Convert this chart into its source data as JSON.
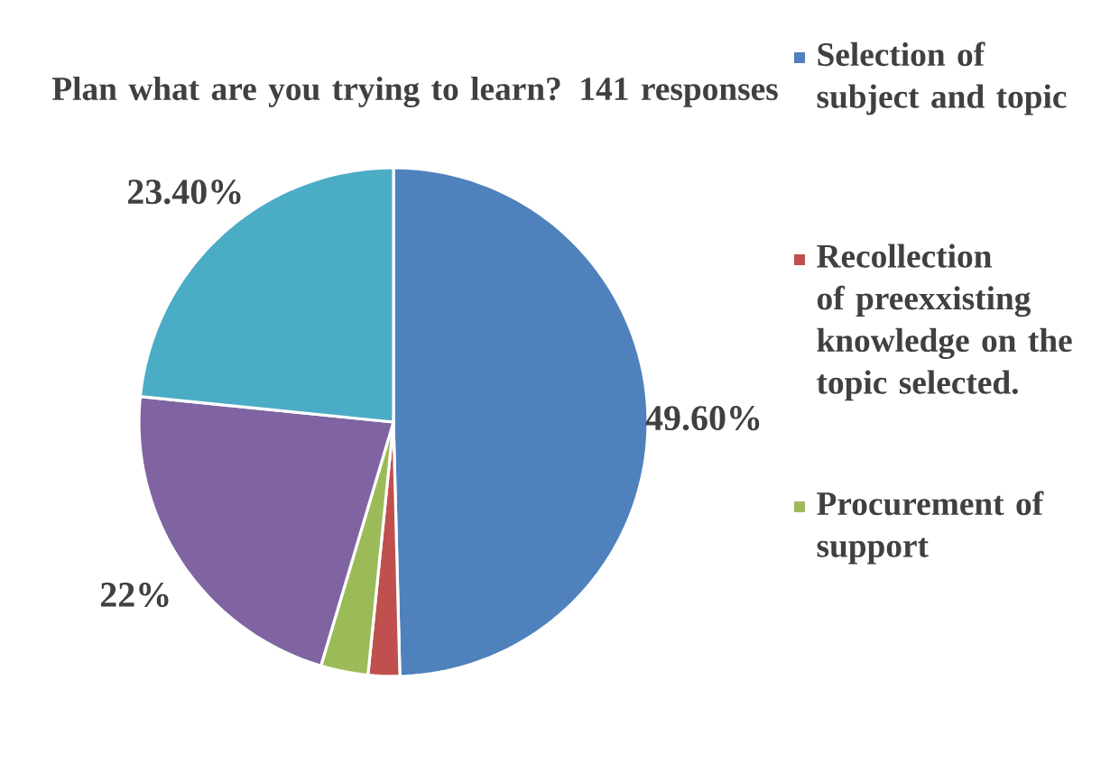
{
  "chart_data": {
    "type": "pie",
    "title": "Plan what are you trying to learn? 141 responses",
    "categories": [
      "Selection of subject and topic",
      "Recollection of preexxisting knowledge on the topic selected.",
      "Procurement of support",
      null,
      null
    ],
    "values": [
      49.6,
      2,
      3,
      22,
      23.4
    ],
    "colors": [
      "#4f81bd",
      "#c0504d",
      "#9bbb59",
      "#8064a2",
      "#4bacc6"
    ],
    "value_labels": [
      "49.60%",
      null,
      null,
      "22%",
      "23.40%"
    ],
    "legend": "right"
  }
}
